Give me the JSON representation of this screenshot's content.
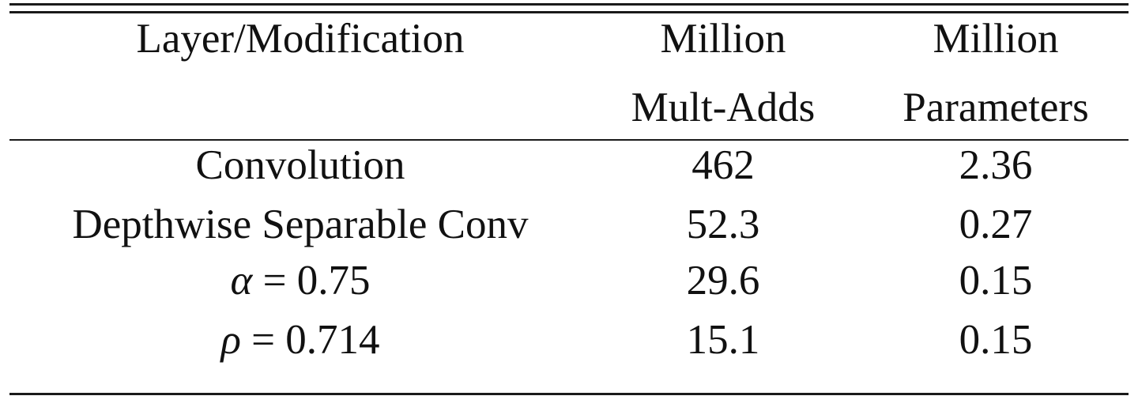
{
  "table": {
    "header": {
      "col1": "Layer/Modification",
      "col2_line1": "Million",
      "col2_line2": "Mult-Adds",
      "col3_line1": "Million",
      "col3_line2": "Parameters"
    },
    "rows": [
      {
        "label": "Convolution",
        "mult_adds": "462",
        "parameters": "2.36"
      },
      {
        "label": "Depthwise Separable Conv",
        "mult_adds": "52.3",
        "parameters": "0.27"
      },
      {
        "label_var": "α",
        "label_rest": " = 0.75",
        "mult_adds": "29.6",
        "parameters": "0.15"
      },
      {
        "label_var": "ρ",
        "label_rest": " = 0.714",
        "mult_adds": "15.1",
        "parameters": "0.15"
      }
    ]
  }
}
